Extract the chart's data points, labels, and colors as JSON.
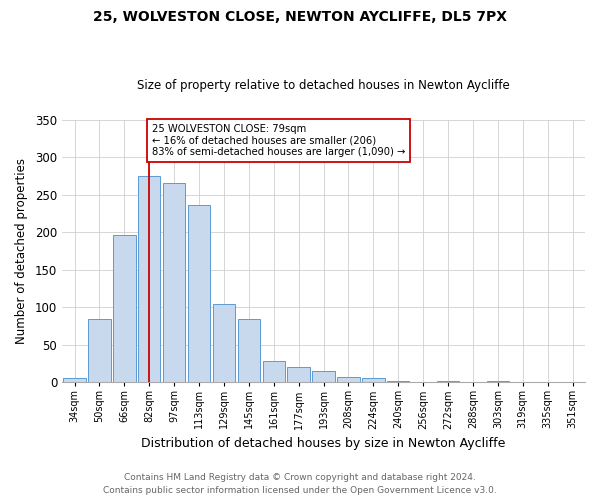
{
  "title": "25, WOLVESTON CLOSE, NEWTON AYCLIFFE, DL5 7PX",
  "subtitle": "Size of property relative to detached houses in Newton Aycliffe",
  "xlabel": "Distribution of detached houses by size in Newton Aycliffe",
  "ylabel": "Number of detached properties",
  "bar_values": [
    6,
    84,
    196,
    275,
    265,
    236,
    104,
    84,
    28,
    20,
    15,
    7,
    5,
    2,
    0,
    2,
    0,
    2,
    0,
    0,
    0
  ],
  "bar_labels": [
    "34sqm",
    "50sqm",
    "66sqm",
    "82sqm",
    "97sqm",
    "113sqm",
    "129sqm",
    "145sqm",
    "161sqm",
    "177sqm",
    "193sqm",
    "208sqm",
    "224sqm",
    "240sqm",
    "256sqm",
    "272sqm",
    "288sqm",
    "303sqm",
    "319sqm",
    "335sqm",
    "351sqm"
  ],
  "bar_color": "#c9d9ed",
  "bar_edgecolor": "#5b9bd5",
  "property_line_x": 3,
  "property_line_color": "#cc0000",
  "annotation_text": "25 WOLVESTON CLOSE: 79sqm\n← 16% of detached houses are smaller (206)\n83% of semi-detached houses are larger (1,090) →",
  "annotation_box_edgecolor": "#cc0000",
  "annotation_box_facecolor": "#ffffff",
  "ylim": [
    0,
    350
  ],
  "yticks": [
    0,
    50,
    100,
    150,
    200,
    250,
    300,
    350
  ],
  "footer_line1": "Contains HM Land Registry data © Crown copyright and database right 2024.",
  "footer_line2": "Contains public sector information licensed under the Open Government Licence v3.0.",
  "background_color": "#ffffff",
  "grid_color": "#d0d0d0"
}
